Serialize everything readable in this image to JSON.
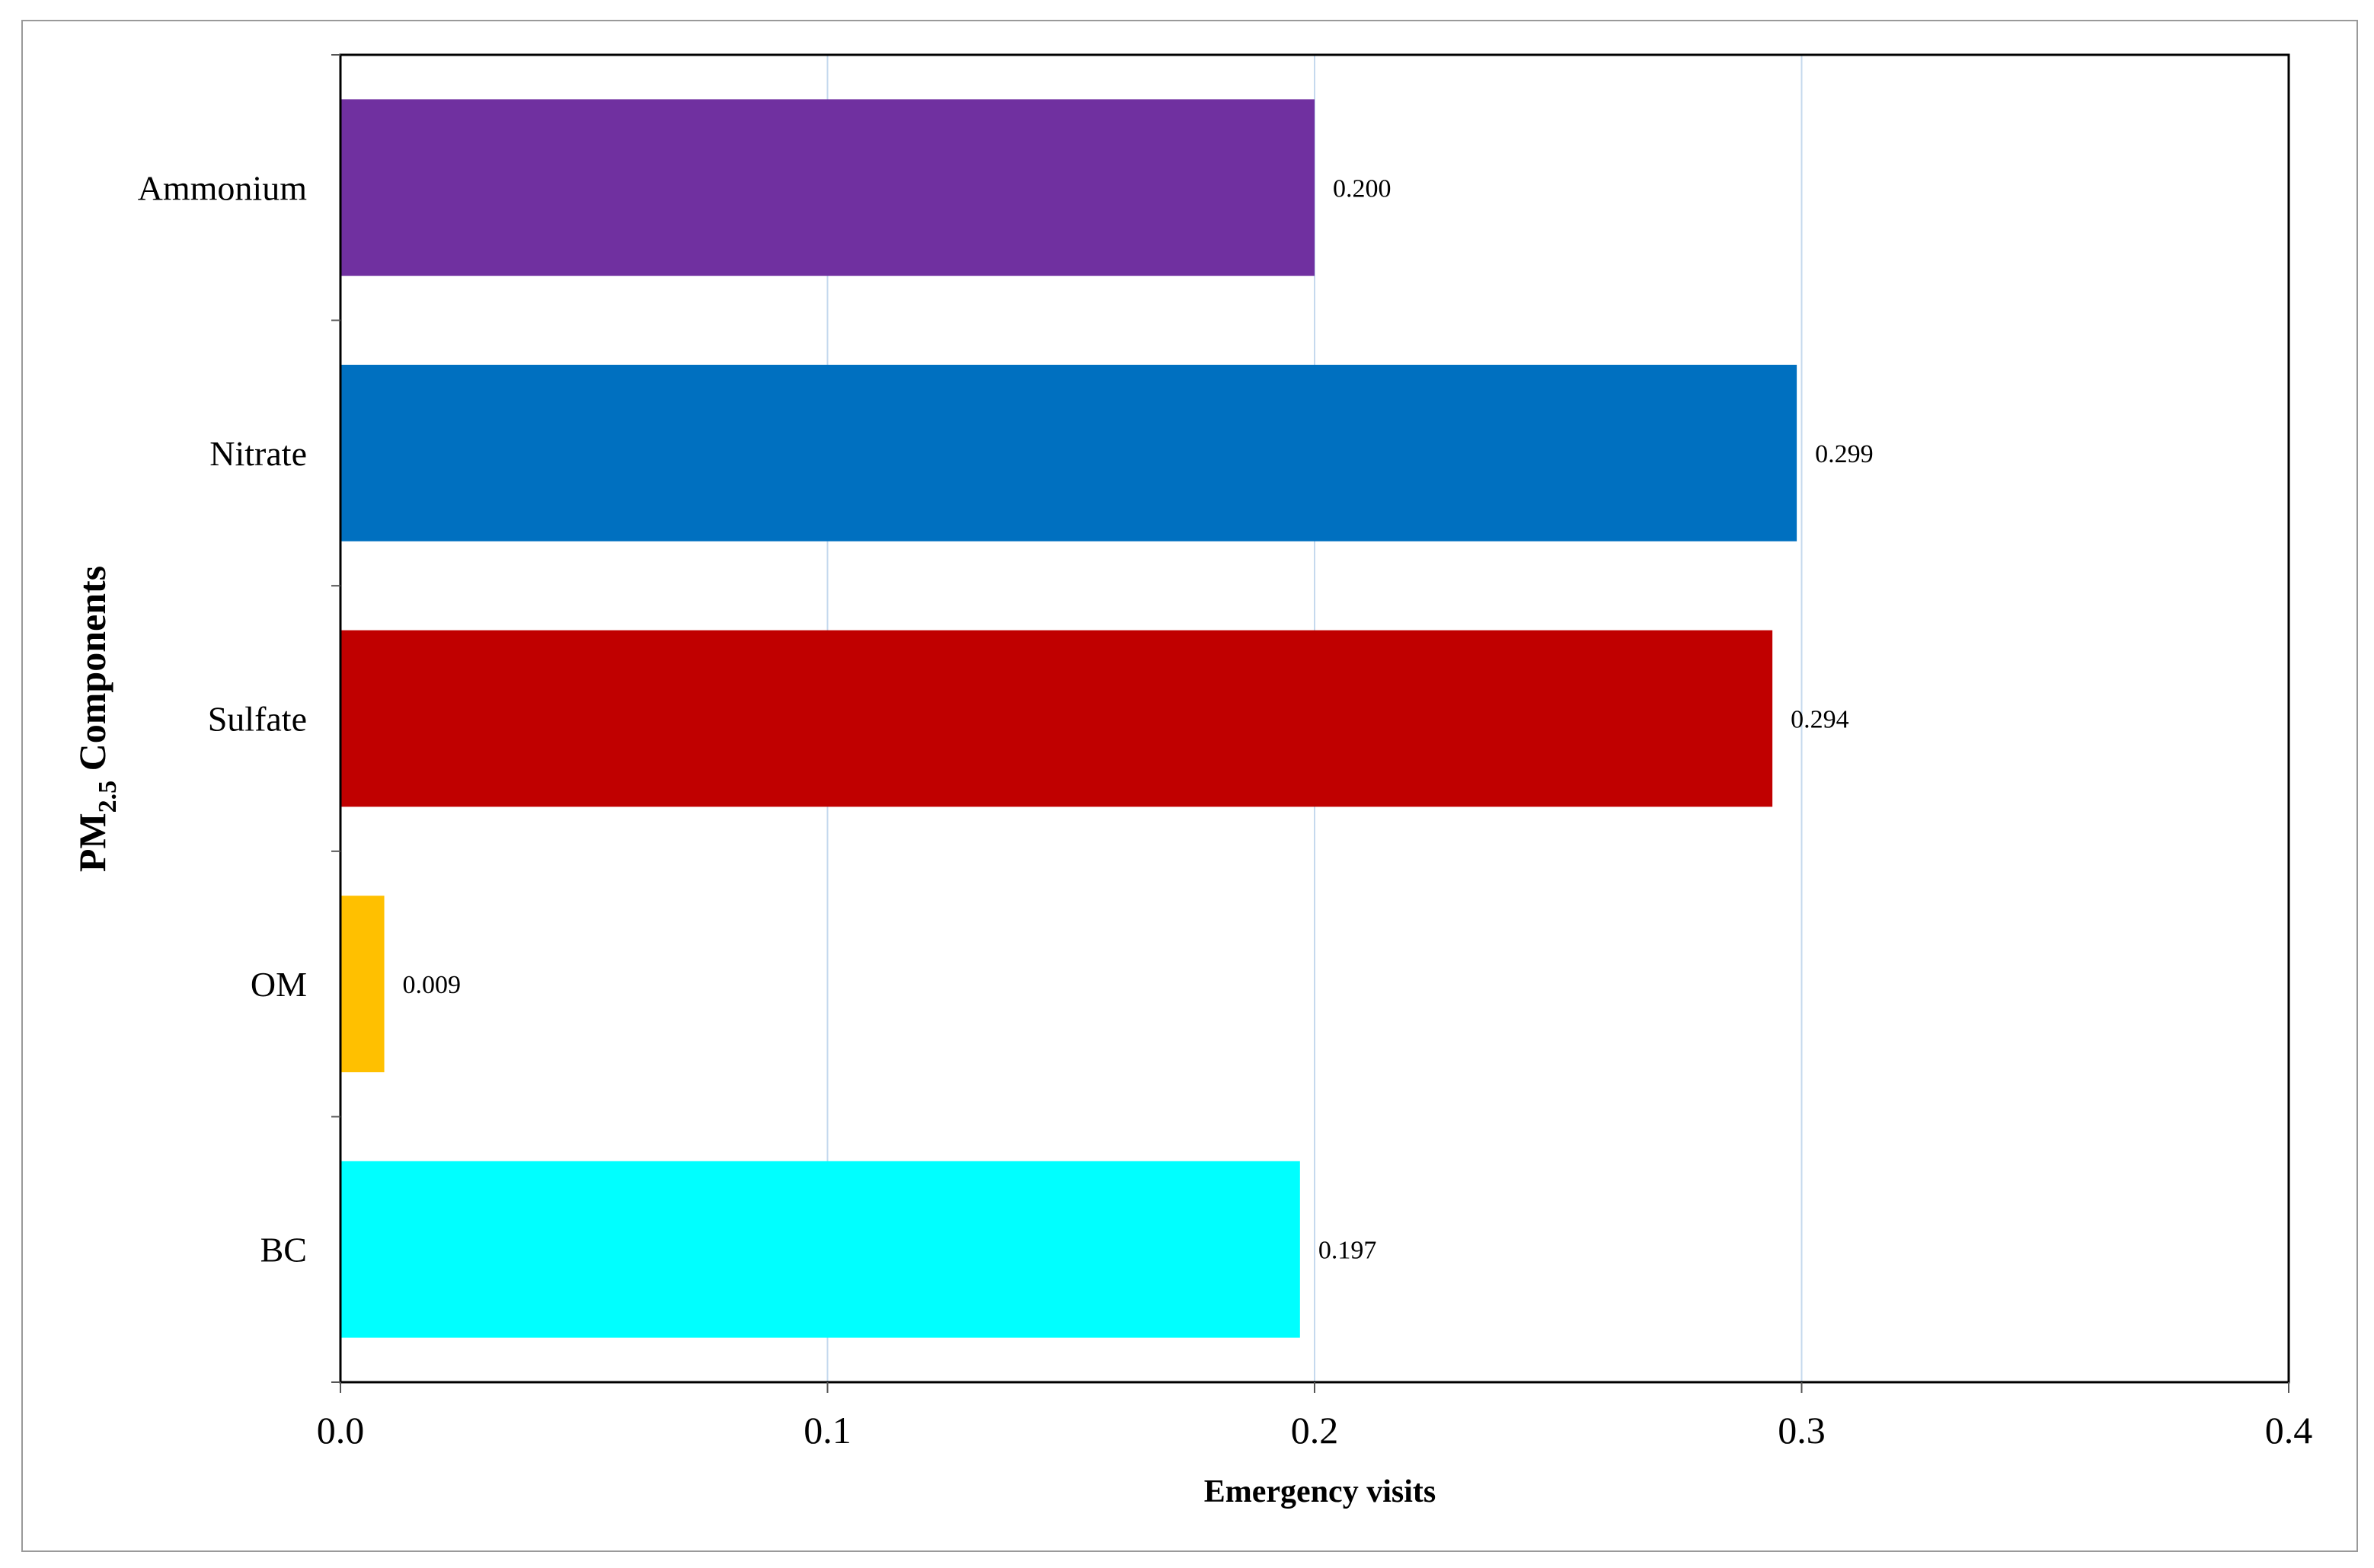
{
  "chart_data": {
    "type": "bar",
    "orientation": "horizontal",
    "categories": [
      "Ammonium",
      "Nitrate",
      "Sulfate",
      "OM",
      "BC"
    ],
    "values": [
      0.2,
      0.299,
      0.294,
      0.009,
      0.197
    ],
    "data_labels": [
      "0.200",
      "0.299",
      "0.294",
      "0.009",
      "0.197"
    ],
    "colors": [
      "#7030A0",
      "#0070C0",
      "#C00000",
      "#FFC000",
      "#00FFFF"
    ],
    "xlabel": "Emergency visits",
    "ylabel_main": "PM",
    "ylabel_sub": "2.5",
    "ylabel_rest": " Components",
    "xlim": [
      0,
      0.4
    ],
    "x_ticks": [
      "0.0",
      "0.1",
      "0.2",
      "0.3",
      "0.4"
    ],
    "grid": "vertical",
    "grid_color": "#C5D9EE",
    "legend": "none"
  }
}
